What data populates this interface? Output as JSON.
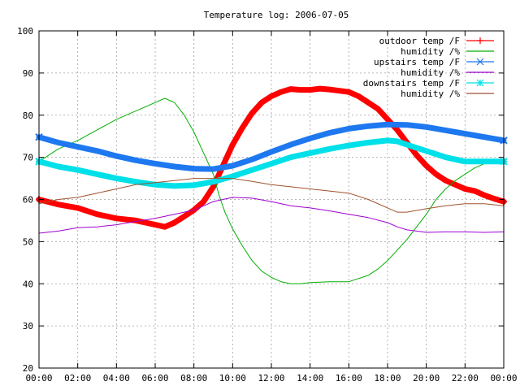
{
  "chart_data": {
    "type": "line",
    "title": "Temperature log: 2006-07-05",
    "xlabel": "",
    "ylabel": "",
    "xlim": [
      0,
      24
    ],
    "ylim": [
      20,
      100
    ],
    "x_tick_labels": [
      "00:00",
      "02:00",
      "04:00",
      "06:00",
      "08:00",
      "10:00",
      "12:00",
      "14:00",
      "16:00",
      "18:00",
      "20:00",
      "22:00",
      "00:00"
    ],
    "y_tick_labels": [
      "20",
      "30",
      "40",
      "50",
      "60",
      "70",
      "80",
      "90",
      "100"
    ],
    "grid": true,
    "legend_position": "top-right",
    "series": [
      {
        "name": "outdoor temp /F",
        "color": "#ff0000",
        "marker": "plus",
        "style": "thick",
        "x": [
          0,
          1,
          2,
          3,
          4,
          5,
          5.5,
          6,
          6.5,
          7,
          7.5,
          8,
          8.5,
          9,
          9.5,
          10,
          10.5,
          11,
          11.5,
          12,
          12.5,
          13,
          13.5,
          14,
          14.5,
          15,
          15.5,
          16,
          16.5,
          17,
          17.5,
          18,
          18.5,
          19,
          19.5,
          20,
          20.5,
          21,
          21.5,
          22,
          22.5,
          23,
          23.5,
          24
        ],
        "y": [
          60,
          58.8,
          58,
          56.5,
          55.5,
          55,
          54.5,
          54,
          53.5,
          54.5,
          56,
          57.5,
          59.5,
          63,
          68,
          73,
          77,
          80.5,
          83,
          84.5,
          85.5,
          86.2,
          86,
          86,
          86.3,
          86.1,
          85.8,
          85.5,
          84.5,
          83,
          81.5,
          79,
          76.5,
          73.5,
          70.5,
          68,
          66,
          64.5,
          63.5,
          62.5,
          62,
          61,
          60.2,
          59.5
        ]
      },
      {
        "name": "humidity /%",
        "color": "#00b000",
        "marker": "none",
        "style": "thin",
        "x": [
          0,
          1,
          2,
          3,
          4,
          5,
          6,
          6.5,
          7,
          7.5,
          8,
          8.5,
          9,
          9.3,
          9.6,
          10,
          10.5,
          11,
          11.5,
          12,
          12.5,
          13,
          13.5,
          14,
          15,
          16,
          17,
          17.5,
          18,
          18.5,
          19,
          19.5,
          20,
          20.5,
          21,
          21.5,
          22,
          22.5,
          23,
          23.5,
          24
        ],
        "y": [
          69,
          72,
          74,
          76.5,
          79,
          81,
          83,
          84,
          83,
          80,
          76,
          71,
          66,
          61,
          57,
          53,
          49,
          45.5,
          43,
          41.5,
          40.5,
          40,
          40,
          40.3,
          40.5,
          40.5,
          42,
          43.5,
          45.5,
          48,
          50.5,
          53.5,
          56.5,
          60,
          62.5,
          64.5,
          66,
          67.5,
          68.5,
          69.2,
          69.5
        ]
      },
      {
        "name": "upstairs temp /F",
        "color": "#1e78f0",
        "marker": "x",
        "style": "thick",
        "x": [
          0,
          1,
          2,
          3,
          4,
          5,
          6,
          7,
          8,
          9,
          10,
          11,
          12,
          13,
          14,
          15,
          16,
          17,
          18,
          19,
          20,
          21,
          22,
          23,
          24
        ],
        "y": [
          74.8,
          73.5,
          72.5,
          71.5,
          70.3,
          69.3,
          68.5,
          67.8,
          67.3,
          67.2,
          68,
          69.5,
          71.3,
          73,
          74.5,
          75.8,
          76.8,
          77.4,
          77.8,
          77.7,
          77.2,
          76.4,
          75.6,
          74.8,
          74
        ]
      },
      {
        "name": "humidity /%",
        "color": "#a000d0",
        "marker": "none",
        "style": "thin",
        "x": [
          0,
          1,
          2,
          3,
          4,
          5,
          6,
          7,
          8,
          9,
          10,
          11,
          12,
          13,
          14,
          15,
          16,
          17,
          18,
          18.5,
          19,
          19.5,
          20,
          21,
          22,
          23,
          24
        ],
        "y": [
          52,
          52.5,
          53.3,
          53.5,
          54,
          54.8,
          55.5,
          56.5,
          57.5,
          59.5,
          60.5,
          60.3,
          59.5,
          58.5,
          58,
          57.3,
          56.5,
          55.7,
          54.5,
          53.5,
          52.8,
          52.5,
          52.2,
          52.3,
          52.3,
          52.2,
          52.3
        ]
      },
      {
        "name": "downstairs temp /F",
        "color": "#00e0e8",
        "marker": "asterisk",
        "style": "thick",
        "x": [
          0,
          1,
          2,
          3,
          4,
          5,
          6,
          7,
          8,
          9,
          10,
          11,
          12,
          13,
          14,
          15,
          16,
          17,
          18,
          18.5,
          19,
          20,
          21,
          22,
          23,
          24
        ],
        "y": [
          69,
          67.8,
          67,
          66,
          65,
          64.2,
          63.5,
          63.2,
          63.4,
          64.2,
          65.5,
          67,
          68.5,
          70,
          71,
          72,
          72.8,
          73.5,
          74,
          73.8,
          73,
          71.5,
          70,
          69,
          69,
          69
        ]
      },
      {
        "name": "humidity /%",
        "color": "#a0522d",
        "marker": "none",
        "style": "thin",
        "x": [
          0,
          1,
          2,
          3,
          4,
          5,
          6,
          7,
          8,
          9,
          10,
          11,
          12,
          13,
          14,
          15,
          16,
          17,
          18,
          18.5,
          19,
          20,
          21,
          22,
          23,
          24
        ],
        "y": [
          59,
          60,
          60.5,
          61.5,
          62.5,
          63.5,
          64,
          64.5,
          65,
          65,
          65,
          64.3,
          63.5,
          63,
          62.5,
          62,
          61.5,
          60,
          58,
          57,
          57,
          57.8,
          58.5,
          59,
          59,
          58.5
        ]
      }
    ]
  }
}
